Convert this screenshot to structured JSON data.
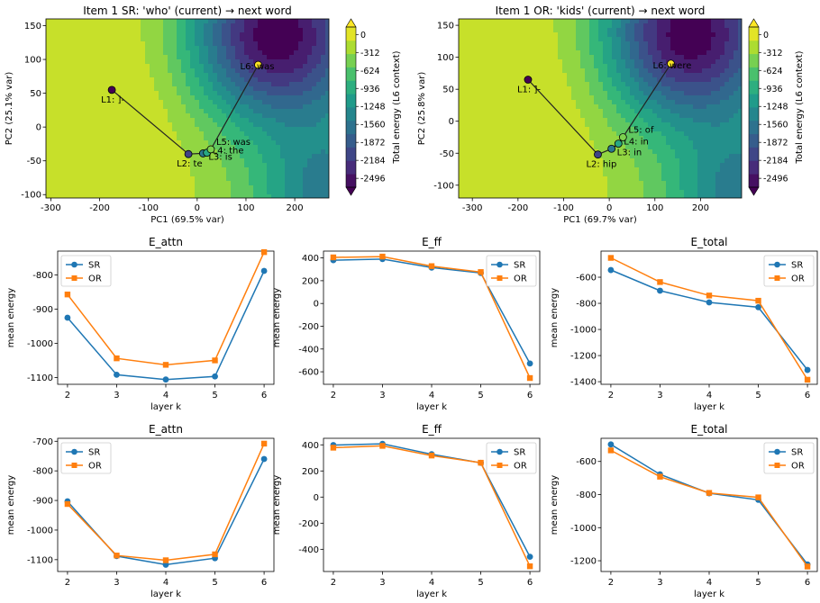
{
  "chart_data": [
    {
      "type": "heatmap",
      "title": "Item 1 SR: 'who' (current) → next word",
      "xlabel": "PC1 (69.5% var)",
      "ylabel": "PC2 (25.1% var)",
      "xlim": [
        -310,
        270
      ],
      "ylim": [
        -105,
        160
      ],
      "xticks": [
        "-300",
        "-200",
        "-100",
        "0",
        "100",
        "200"
      ],
      "yticks": [
        "150",
        "100",
        "50",
        "0",
        "-50",
        "-100"
      ],
      "colorbar": {
        "label": "Total energy (L6 context)",
        "range": [
          -2650,
          130
        ],
        "ticks": [
          "0",
          "-312",
          "-624",
          "-936",
          "-1248",
          "-1560",
          "-1872",
          "-2184",
          "-2496"
        ]
      },
      "trajectory": {
        "points": [
          {
            "label": "L1: ]-",
            "x": -175,
            "y": 55
          },
          {
            "label": "L2: te",
            "x": -18,
            "y": -40
          },
          {
            "label": "L3: is",
            "x": 12,
            "y": -39
          },
          {
            "label": "L4: the",
            "x": 20,
            "y": -38
          },
          {
            "label": "L5: was",
            "x": 28,
            "y": -33
          },
          {
            "label": "L6: was",
            "x": 125,
            "y": 92
          }
        ]
      }
    },
    {
      "type": "heatmap",
      "title": "Item 1 OR: 'kids' (current) → next word",
      "xlabel": "PC1 (69.7% var)",
      "ylabel": "PC2 (25.8% var)",
      "xlim": [
        -330,
        290
      ],
      "ylim": [
        -120,
        160
      ],
      "xticks": [
        "-300",
        "-200",
        "-100",
        "0",
        "100",
        "200"
      ],
      "yticks": [
        "150",
        "100",
        "50",
        "0",
        "-50",
        "-100"
      ],
      "colorbar": {
        "label": "Total energy (L6 context)",
        "range": [
          -2650,
          130
        ],
        "ticks": [
          "0",
          "-312",
          "-624",
          "-936",
          "-1248",
          "-1560",
          "-1872",
          "-2184",
          "-2496"
        ]
      },
      "trajectory": {
        "points": [
          {
            "label": "L1: ]-",
            "x": -178,
            "y": 65
          },
          {
            "label": "L2: hip",
            "x": -25,
            "y": -52
          },
          {
            "label": "L3: in",
            "x": 5,
            "y": -43
          },
          {
            "label": "L4: in",
            "x": 20,
            "y": -35
          },
          {
            "label": "L5: of",
            "x": 30,
            "y": -25
          },
          {
            "label": "L6: were",
            "x": 135,
            "y": 90
          }
        ]
      }
    },
    {
      "type": "line",
      "title": "E_attn",
      "xlabel": "layer k",
      "ylabel": "mean energy",
      "x": [
        2,
        3,
        4,
        5,
        6
      ],
      "xlim": [
        1.8,
        6.2
      ],
      "ylim": [
        -1120,
        -730
      ],
      "yticks": [
        "-800",
        "-900",
        "-1000",
        "-1100"
      ],
      "legend": "top-left",
      "series": [
        {
          "name": "SR",
          "color": "#1f77b4",
          "marker": "circle",
          "values": [
            -925,
            -1092,
            -1106,
            -1097,
            -788
          ]
        },
        {
          "name": "OR",
          "color": "#ff7f0e",
          "marker": "square",
          "values": [
            -857,
            -1044,
            -1063,
            -1050,
            -733
          ]
        }
      ]
    },
    {
      "type": "line",
      "title": "E_ff",
      "xlabel": "layer k",
      "ylabel": "mean energy",
      "x": [
        2,
        3,
        4,
        5,
        6
      ],
      "xlim": [
        1.8,
        6.2
      ],
      "ylim": [
        -710,
        460
      ],
      "yticks": [
        "400",
        "200",
        "0",
        "-200",
        "-400",
        "-600"
      ],
      "legend": "top-right",
      "series": [
        {
          "name": "SR",
          "color": "#1f77b4",
          "marker": "circle",
          "values": [
            380,
            390,
            315,
            268,
            -527
          ]
        },
        {
          "name": "OR",
          "color": "#ff7f0e",
          "marker": "square",
          "values": [
            405,
            412,
            328,
            276,
            -655
          ]
        }
      ]
    },
    {
      "type": "line",
      "title": "E_total",
      "xlabel": "layer k",
      "ylabel": "mean energy",
      "x": [
        2,
        3,
        4,
        5,
        6
      ],
      "xlim": [
        1.8,
        6.2
      ],
      "ylim": [
        -1420,
        -400
      ],
      "yticks": [
        "-600",
        "-800",
        "-1000",
        "-1200",
        "-1400"
      ],
      "legend": "top-right",
      "series": [
        {
          "name": "SR",
          "color": "#1f77b4",
          "marker": "circle",
          "values": [
            -545,
            -703,
            -793,
            -830,
            -1310
          ]
        },
        {
          "name": "OR",
          "color": "#ff7f0e",
          "marker": "square",
          "values": [
            -452,
            -637,
            -740,
            -780,
            -1385
          ]
        }
      ]
    },
    {
      "type": "line",
      "title": "E_attn",
      "xlabel": "layer k",
      "ylabel": "mean energy",
      "x": [
        2,
        3,
        4,
        5,
        6
      ],
      "xlim": [
        1.8,
        6.2
      ],
      "ylim": [
        -1140,
        -690
      ],
      "yticks": [
        "-700",
        "-800",
        "-900",
        "-1000",
        "-1100"
      ],
      "legend": "top-left",
      "series": [
        {
          "name": "SR",
          "color": "#1f77b4",
          "marker": "circle",
          "values": [
            -903,
            -1088,
            -1117,
            -1095,
            -760
          ]
        },
        {
          "name": "OR",
          "color": "#ff7f0e",
          "marker": "square",
          "values": [
            -912,
            -1086,
            -1102,
            -1082,
            -708
          ]
        }
      ]
    },
    {
      "type": "line",
      "title": "E_ff",
      "xlabel": "layer k",
      "ylabel": "mean energy",
      "x": [
        2,
        3,
        4,
        5,
        6
      ],
      "xlim": [
        1.8,
        6.2
      ],
      "ylim": [
        -570,
        450
      ],
      "yticks": [
        "400",
        "200",
        "0",
        "-200",
        "-400"
      ],
      "legend": "top-right",
      "series": [
        {
          "name": "SR",
          "color": "#1f77b4",
          "marker": "circle",
          "values": [
            398,
            408,
            328,
            262,
            -457
          ]
        },
        {
          "name": "OR",
          "color": "#ff7f0e",
          "marker": "square",
          "values": [
            378,
            392,
            318,
            263,
            -530
          ]
        }
      ]
    },
    {
      "type": "line",
      "title": "E_total",
      "xlabel": "layer k",
      "ylabel": "mean energy",
      "x": [
        2,
        3,
        4,
        5,
        6
      ],
      "xlim": [
        1.8,
        6.2
      ],
      "ylim": [
        -1265,
        -460
      ],
      "yticks": [
        "-600",
        "-800",
        "-1000",
        "-1200"
      ],
      "legend": "top-right",
      "series": [
        {
          "name": "SR",
          "color": "#1f77b4",
          "marker": "circle",
          "values": [
            -497,
            -678,
            -792,
            -832,
            -1222
          ]
        },
        {
          "name": "OR",
          "color": "#ff7f0e",
          "marker": "square",
          "values": [
            -533,
            -692,
            -790,
            -817,
            -1235
          ]
        }
      ]
    }
  ]
}
